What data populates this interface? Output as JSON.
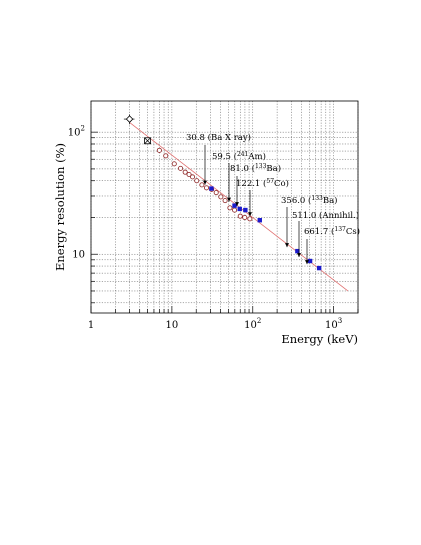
{
  "chart_data": {
    "type": "scatter",
    "title": "",
    "xlabel": "Energy (keV)",
    "ylabel": "Energy resolution (%)",
    "xscale": "log",
    "yscale": "log",
    "xlim": [
      1,
      2000
    ],
    "ylim": [
      3.3,
      180
    ],
    "grid": true,
    "xticks": [
      {
        "value": 1,
        "base": "1",
        "exp": ""
      },
      {
        "value": 10,
        "base": "10",
        "exp": ""
      },
      {
        "value": 100,
        "base": "10",
        "exp": "2"
      },
      {
        "value": 1000,
        "base": "10",
        "exp": "3"
      }
    ],
    "yticks": [
      {
        "value": 10,
        "base": "10",
        "exp": ""
      },
      {
        "value": 100,
        "base": "10",
        "exp": "2"
      }
    ],
    "series": [
      {
        "marker": "open-diamond-errorbar",
        "x": [
          3.0
        ],
        "y": [
          128
        ],
        "xerr": [
          0.45
        ],
        "yerr": [
          12
        ]
      },
      {
        "marker": "crossed-square",
        "x": [
          5.0
        ],
        "y": [
          85
        ]
      },
      {
        "marker": "open-circle",
        "color": "#8b2020",
        "x": [
          7.0,
          8.4,
          10.7,
          12.8,
          14.6,
          16.3,
          18.0,
          20.3,
          23.5,
          26.8,
          31.0,
          35.3,
          40.3,
          45.5,
          52.2,
          59.6,
          70.0,
          79.6,
          92.0
        ],
        "y": [
          71.0,
          64.0,
          55.0,
          50.5,
          47.0,
          45.0,
          43.0,
          40.0,
          37.0,
          35.0,
          34.0,
          32.0,
          29.5,
          27.5,
          24.0,
          23.0,
          20.5,
          20.0,
          19.5
        ]
      },
      {
        "marker": "filled-square",
        "color": "#1a1acc",
        "x": [
          30.8,
          59.5,
          69.0,
          81.0,
          122.1,
          356.0,
          511.0,
          661.7
        ],
        "y": [
          34.5,
          25.0,
          23.5,
          23.0,
          19.0,
          10.6,
          8.8,
          7.7
        ]
      }
    ],
    "fit_line": {
      "color": "#e07070",
      "x": [
        3.0,
        1500
      ],
      "y": [
        120,
        5.0
      ]
    },
    "annotations": [
      {
        "value": "30.8",
        "label": "(Ba X ray)",
        "iso": "",
        "elem": "",
        "x": 30.8,
        "y": 34.5
      },
      {
        "value": "59.5",
        "label": "",
        "iso": "241",
        "elem": "Am",
        "x": 59.5,
        "y": 25.0
      },
      {
        "value": "81.0",
        "label": "",
        "iso": "133",
        "elem": "Ba",
        "x": 81.0,
        "y": 23.0
      },
      {
        "value": "122.1",
        "label": "",
        "iso": "57",
        "elem": "Co",
        "x": 122.1,
        "y": 19.0
      },
      {
        "value": "356.0",
        "label": "",
        "iso": "133",
        "elem": "Ba",
        "x": 356.0,
        "y": 10.6
      },
      {
        "value": "511.0",
        "label": "(Annihil.)",
        "iso": "",
        "elem": "",
        "x": 511.0,
        "y": 8.8
      },
      {
        "value": "661.7",
        "label": "",
        "iso": "137",
        "elem": "Cs",
        "x": 661.7,
        "y": 7.7
      }
    ]
  }
}
